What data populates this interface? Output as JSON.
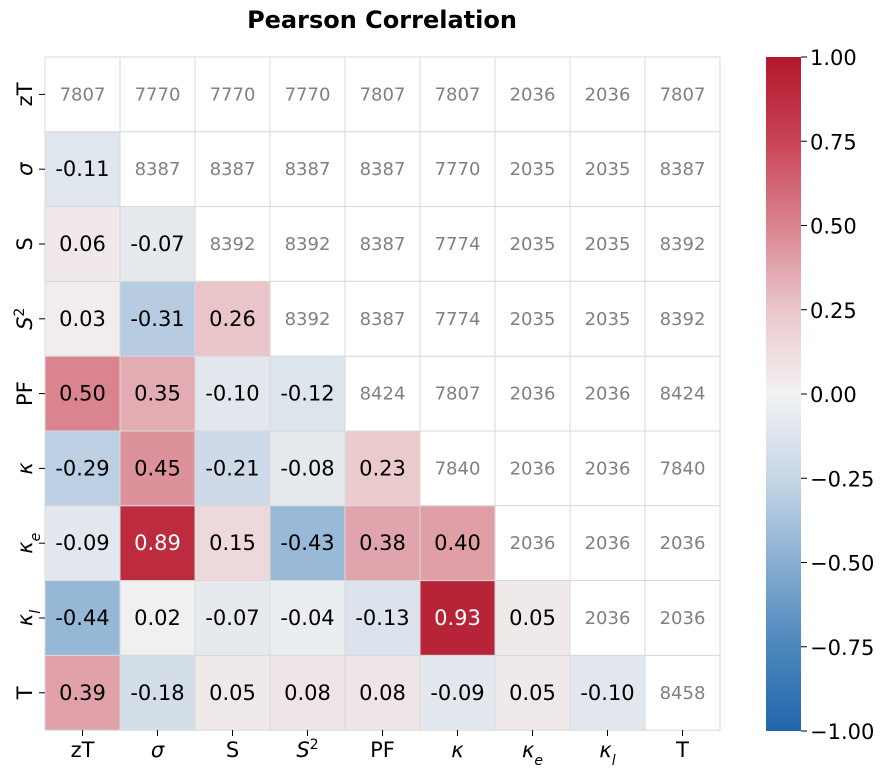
{
  "chart_data": {
    "type": "heatmap",
    "title": "Pearson Correlation",
    "labels": [
      {
        "text": "zT"
      },
      {
        "text": "σ",
        "italic": true
      },
      {
        "text": "S"
      },
      {
        "text": "S",
        "italic": true,
        "sup": "2"
      },
      {
        "text": "PF"
      },
      {
        "text": "κ",
        "italic": true
      },
      {
        "text": "κ",
        "italic": true,
        "sub": "e"
      },
      {
        "text": "κ",
        "italic": true,
        "sub": "l"
      },
      {
        "text": "T"
      }
    ],
    "lower_triangle_note": "Pearson correlation coefficients",
    "upper_triangle_note": "sample counts",
    "matrix": [
      [
        null,
        7770,
        7770,
        7770,
        7807,
        7807,
        2036,
        2036,
        7807
      ],
      [
        -0.11,
        null,
        8387,
        8387,
        8387,
        7770,
        2035,
        2035,
        8387
      ],
      [
        0.06,
        -0.07,
        null,
        8392,
        8387,
        7774,
        2035,
        2035,
        8392
      ],
      [
        0.03,
        -0.31,
        0.26,
        null,
        8387,
        7774,
        2035,
        2035,
        8392
      ],
      [
        0.5,
        0.35,
        -0.1,
        -0.12,
        null,
        7807,
        2036,
        2036,
        8424
      ],
      [
        -0.29,
        0.45,
        -0.21,
        -0.08,
        0.23,
        null,
        2036,
        2036,
        7840
      ],
      [
        -0.09,
        0.89,
        0.15,
        -0.43,
        0.38,
        0.4,
        null,
        2036,
        2036
      ],
      [
        -0.44,
        0.02,
        -0.07,
        -0.04,
        -0.13,
        0.93,
        0.05,
        null,
        2036
      ],
      [
        0.39,
        -0.18,
        0.05,
        0.08,
        0.08,
        -0.09,
        0.05,
        -0.1,
        null
      ]
    ],
    "diagonal_counts": [
      7807,
      8387,
      8392,
      8392,
      8424,
      7840,
      2036,
      2036,
      8458
    ],
    "colorbar": {
      "colormap": "diverging blue-white-red",
      "vmin": -1.0,
      "vmax": 1.0,
      "ticks": [
        "1.00",
        "0.75",
        "0.50",
        "0.25",
        "0.00",
        "−0.25",
        "−0.50",
        "−0.75",
        "−1.00"
      ]
    },
    "grid": true
  }
}
